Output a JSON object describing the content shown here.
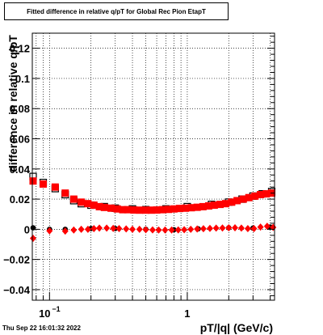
{
  "datestamp": "Thu Sep 22 16:01:32 2022",
  "colors": {
    "series_primary": "#ff0000",
    "series_reference": "#000000",
    "frame": "#000000",
    "grid": "#000000"
  },
  "chart_data": {
    "type": "scatter",
    "title": "Fitted difference in relative q/pT for Global Rec Pion EtapT",
    "xlabel": "pT/|q| (GeV/c)",
    "ylabel": "difference in relative q/pT",
    "xscale": "log",
    "xlim": [
      0.075,
      4.3
    ],
    "ylim": [
      -0.047,
      0.13
    ],
    "grid": true,
    "legend": "none",
    "x_tick_labels": [
      {
        "value": 0.1,
        "base": "10",
        "exp": "−1"
      },
      {
        "value": 1,
        "base": "1",
        "exp": ""
      }
    ],
    "y_tick_labels": [
      {
        "value": 0.12,
        "label": "0.12"
      },
      {
        "value": 0.1,
        "label": "0.1"
      },
      {
        "value": 0.08,
        "label": "0.08"
      },
      {
        "value": 0.06,
        "label": "0.06"
      },
      {
        "value": 0.04,
        "label": "0.04"
      },
      {
        "value": 0.02,
        "label": "0.02"
      },
      {
        "value": 0,
        "label": "0"
      },
      {
        "value": -0.02,
        "label": "−0.02"
      },
      {
        "value": -0.04,
        "label": "−0.04"
      }
    ],
    "series": [
      {
        "marker": "square",
        "color": "#ff0000",
        "points": [
          [
            0.076,
            0.032
          ],
          [
            0.09,
            0.03
          ],
          [
            0.11,
            0.028
          ],
          [
            0.13,
            0.024
          ],
          [
            0.15,
            0.02
          ],
          [
            0.17,
            0.018
          ],
          [
            0.19,
            0.017
          ],
          [
            0.21,
            0.016
          ],
          [
            0.23,
            0.015
          ],
          [
            0.25,
            0.0145
          ],
          [
            0.28,
            0.014
          ],
          [
            0.31,
            0.0135
          ],
          [
            0.34,
            0.013
          ],
          [
            0.37,
            0.013
          ],
          [
            0.41,
            0.0128
          ],
          [
            0.45,
            0.0127
          ],
          [
            0.5,
            0.0127
          ],
          [
            0.55,
            0.0127
          ],
          [
            0.6,
            0.0128
          ],
          [
            0.66,
            0.013
          ],
          [
            0.73,
            0.0132
          ],
          [
            0.8,
            0.0135
          ],
          [
            0.88,
            0.0138
          ],
          [
            0.97,
            0.014
          ],
          [
            1.07,
            0.0143
          ],
          [
            1.18,
            0.0146
          ],
          [
            1.3,
            0.015
          ],
          [
            1.43,
            0.0155
          ],
          [
            1.57,
            0.016
          ],
          [
            1.73,
            0.0165
          ],
          [
            1.9,
            0.017
          ],
          [
            2.1,
            0.018
          ],
          [
            2.3,
            0.019
          ],
          [
            2.55,
            0.02
          ],
          [
            2.8,
            0.021
          ],
          [
            3.1,
            0.022
          ],
          [
            3.4,
            0.023
          ],
          [
            3.75,
            0.0235
          ],
          [
            4.1,
            0.024
          ]
        ]
      },
      {
        "marker": "diamond",
        "color": "#ff0000",
        "points": [
          [
            0.076,
            -0.006
          ],
          [
            0.1,
            -0.001
          ],
          [
            0.13,
            -0.0012
          ],
          [
            0.15,
            -0.0005
          ],
          [
            0.17,
            0.0
          ],
          [
            0.19,
            0.0
          ],
          [
            0.21,
            0.0005
          ],
          [
            0.23,
            0.0008
          ],
          [
            0.26,
            0.0008
          ],
          [
            0.29,
            0.0006
          ],
          [
            0.32,
            0.0005
          ],
          [
            0.36,
            0.0003
          ],
          [
            0.4,
            0.0
          ],
          [
            0.45,
            0.0
          ],
          [
            0.5,
            -0.0003
          ],
          [
            0.56,
            -0.0004
          ],
          [
            0.62,
            -0.0005
          ],
          [
            0.69,
            -0.0005
          ],
          [
            0.77,
            -0.0005
          ],
          [
            0.86,
            -0.0004
          ],
          [
            0.95,
            -0.0003
          ],
          [
            1.06,
            0.0
          ],
          [
            1.18,
            0.0002
          ],
          [
            1.31,
            0.0004
          ],
          [
            1.46,
            0.0006
          ],
          [
            1.62,
            0.0008
          ],
          [
            1.8,
            0.0009
          ],
          [
            2.0,
            0.001
          ],
          [
            2.22,
            0.001
          ],
          [
            2.47,
            0.0008
          ],
          [
            2.75,
            0.0005
          ],
          [
            3.05,
            0.0005
          ],
          [
            3.4,
            0.0015
          ],
          [
            3.8,
            0.002
          ],
          [
            4.2,
            0.0013
          ]
        ]
      },
      {
        "marker": "square-outline",
        "color": "#000000",
        "points": [
          [
            0.076,
            0.035
          ],
          [
            0.09,
            0.031
          ],
          [
            0.11,
            0.027
          ],
          [
            0.13,
            0.023
          ],
          [
            0.15,
            0.019
          ],
          [
            0.17,
            0.017
          ],
          [
            0.2,
            0.016
          ],
          [
            0.25,
            0.015
          ],
          [
            0.3,
            0.014
          ],
          [
            0.4,
            0.0135
          ],
          [
            0.5,
            0.013
          ],
          [
            0.7,
            0.0135
          ],
          [
            1.0,
            0.015
          ],
          [
            1.5,
            0.0165
          ],
          [
            2.0,
            0.018
          ],
          [
            2.5,
            0.02
          ],
          [
            3.0,
            0.022
          ],
          [
            3.5,
            0.0235
          ],
          [
            4.1,
            0.025
          ]
        ]
      },
      {
        "marker": "circle",
        "color": "#000000",
        "points": [
          [
            0.076,
            0.001
          ],
          [
            0.1,
            0.0
          ],
          [
            0.13,
            0.0
          ],
          [
            0.2,
            0.0005
          ],
          [
            0.3,
            0.0005
          ],
          [
            0.5,
            0.0
          ],
          [
            0.8,
            -0.0003
          ],
          [
            1.2,
            0.0003
          ],
          [
            2.0,
            0.001
          ],
          [
            3.0,
            0.0008
          ],
          [
            4.0,
            0.0015
          ]
        ]
      }
    ]
  }
}
